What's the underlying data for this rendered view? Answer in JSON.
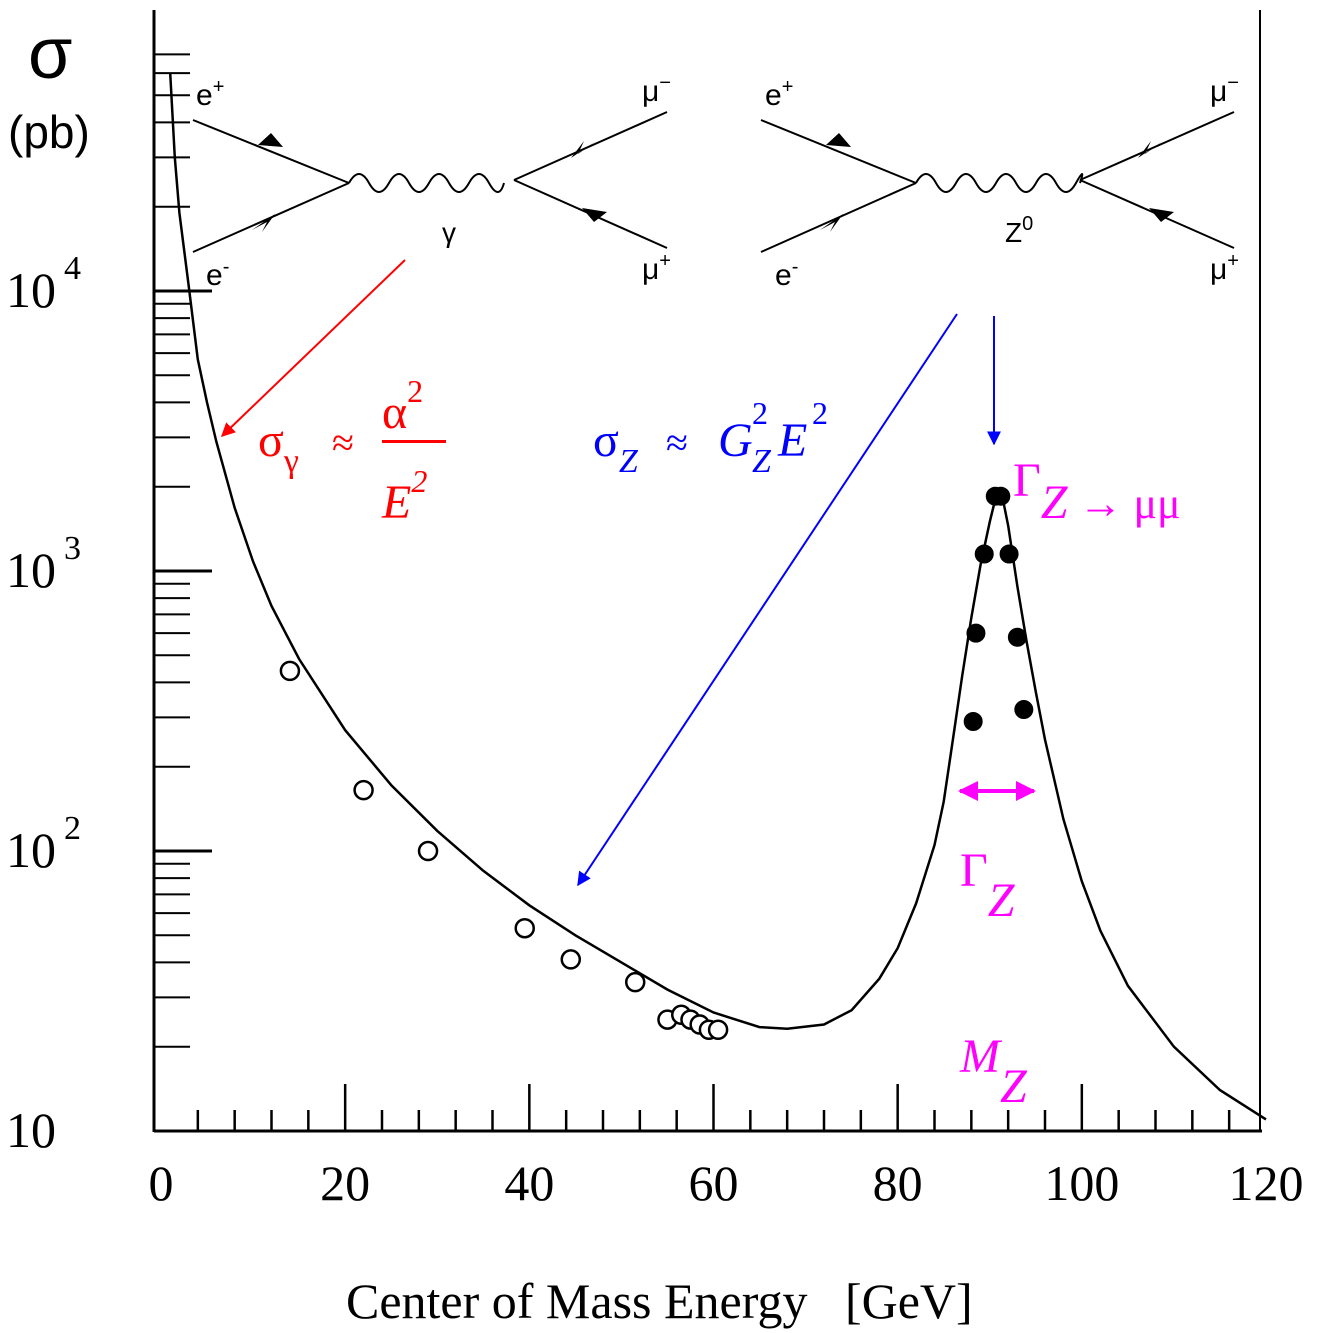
{
  "chart_data": {
    "type": "scatter",
    "title": "",
    "ylabel_symbol": "σ",
    "ylabel_unit": "(pb)",
    "xlabel": "Center of Mass Energy   [GeV]",
    "xlim": [
      0,
      120
    ],
    "ylim": [
      10,
      70000
    ],
    "yscale": "log",
    "x_ticks": [
      "0",
      "20",
      "40",
      "60",
      "80",
      "100",
      "120"
    ],
    "y_ticks": [
      {
        "value": 10,
        "base": "10",
        "exp": ""
      },
      {
        "value": 100,
        "base": "10",
        "exp": "2"
      },
      {
        "value": 1000,
        "base": "10",
        "exp": "3"
      },
      {
        "value": 10000,
        "base": "10",
        "exp": "4"
      }
    ],
    "series": [
      {
        "marker": "open-circle",
        "points": [
          {
            "x": 14,
            "y": 440
          },
          {
            "x": 22,
            "y": 165
          },
          {
            "x": 29,
            "y": 100
          },
          {
            "x": 39.5,
            "y": 53
          },
          {
            "x": 44.5,
            "y": 41
          },
          {
            "x": 51.5,
            "y": 34
          },
          {
            "x": 55,
            "y": 25
          },
          {
            "x": 56.5,
            "y": 26
          },
          {
            "x": 57.5,
            "y": 25
          },
          {
            "x": 58.5,
            "y": 24
          },
          {
            "x": 59.5,
            "y": 23
          },
          {
            "x": 60.5,
            "y": 23
          }
        ]
      },
      {
        "marker": "filled-circle",
        "points": [
          {
            "x": 88.2,
            "y": 290
          },
          {
            "x": 88.5,
            "y": 600
          },
          {
            "x": 89.4,
            "y": 1150
          },
          {
            "x": 90.6,
            "y": 1850
          },
          {
            "x": 91.2,
            "y": 1850
          },
          {
            "x": 92.1,
            "y": 1150
          },
          {
            "x": 93,
            "y": 580
          },
          {
            "x": 93.7,
            "y": 320
          }
        ]
      }
    ],
    "curve_x": [
      1,
      1.5,
      2,
      3,
      4,
      5,
      6,
      8,
      10,
      12,
      15,
      20,
      25,
      30,
      35,
      40,
      45,
      50,
      55,
      60,
      65,
      68,
      72,
      75,
      78,
      80,
      82,
      84,
      85,
      86,
      87,
      88,
      89,
      90,
      90.5,
      91,
      91.5,
      92,
      93,
      94,
      95,
      96,
      98,
      100,
      102,
      105,
      110,
      115,
      120
    ],
    "curve_y": [
      60000,
      30000,
      19000,
      10500,
      5700,
      4000,
      2900,
      1680,
      1080,
      750,
      485,
      270,
      172,
      118,
      85,
      64,
      50,
      40,
      32,
      26.5,
      23.5,
      23.2,
      24,
      27,
      35,
      45,
      65,
      105,
      150,
      250,
      420,
      680,
      1050,
      1500,
      1750,
      1850,
      1750,
      1450,
      880,
      560,
      370,
      250,
      130,
      78,
      52,
      33,
      20,
      14,
      11
    ],
    "annotations": {
      "photon_eq": {
        "sigma": "σ",
        "sub": "γ",
        "approx": "≈",
        "num": "α",
        "num_exp": "2",
        "den": "E",
        "den_exp": "2",
        "color": "#ff0000"
      },
      "z_eq": {
        "sigma": "σ",
        "sub": "Z",
        "approx": "≈",
        "g": "G",
        "g_sup": "2",
        "g_sub": "Z",
        "e": "E",
        "e_sup": "2",
        "color": "#0000ff"
      },
      "gamma_mumu": {
        "main": "Γ",
        "sub": "Z",
        "rest": " → μμ",
        "color": "#ff00ff"
      },
      "gamma_z": {
        "main": "Γ",
        "sub": "Z",
        "color": "#ff00ff"
      },
      "mass_z": {
        "main": "M",
        "sub": "Z",
        "color": "#ff00ff"
      }
    },
    "feynman": {
      "photon": {
        "in_top": "e",
        "in_top_sup": "+",
        "in_bottom": "e",
        "in_bottom_sup": "-",
        "boson": "γ",
        "boson_sup": "",
        "out_top": "μ",
        "out_top_sup": "−",
        "out_bottom": "μ",
        "out_bottom_sup": "+"
      },
      "z": {
        "in_top": "e",
        "in_top_sup": "+",
        "in_bottom": "e",
        "in_bottom_sup": "-",
        "boson": "Z",
        "boson_sup": "0",
        "out_top": "μ",
        "out_top_sup": "−",
        "out_bottom": "μ",
        "out_bottom_sup": "+"
      }
    },
    "colors": {
      "photon": "#ff0000",
      "z": "#0000ff",
      "resonance": "#ff00ff",
      "axis": "#000000"
    }
  }
}
